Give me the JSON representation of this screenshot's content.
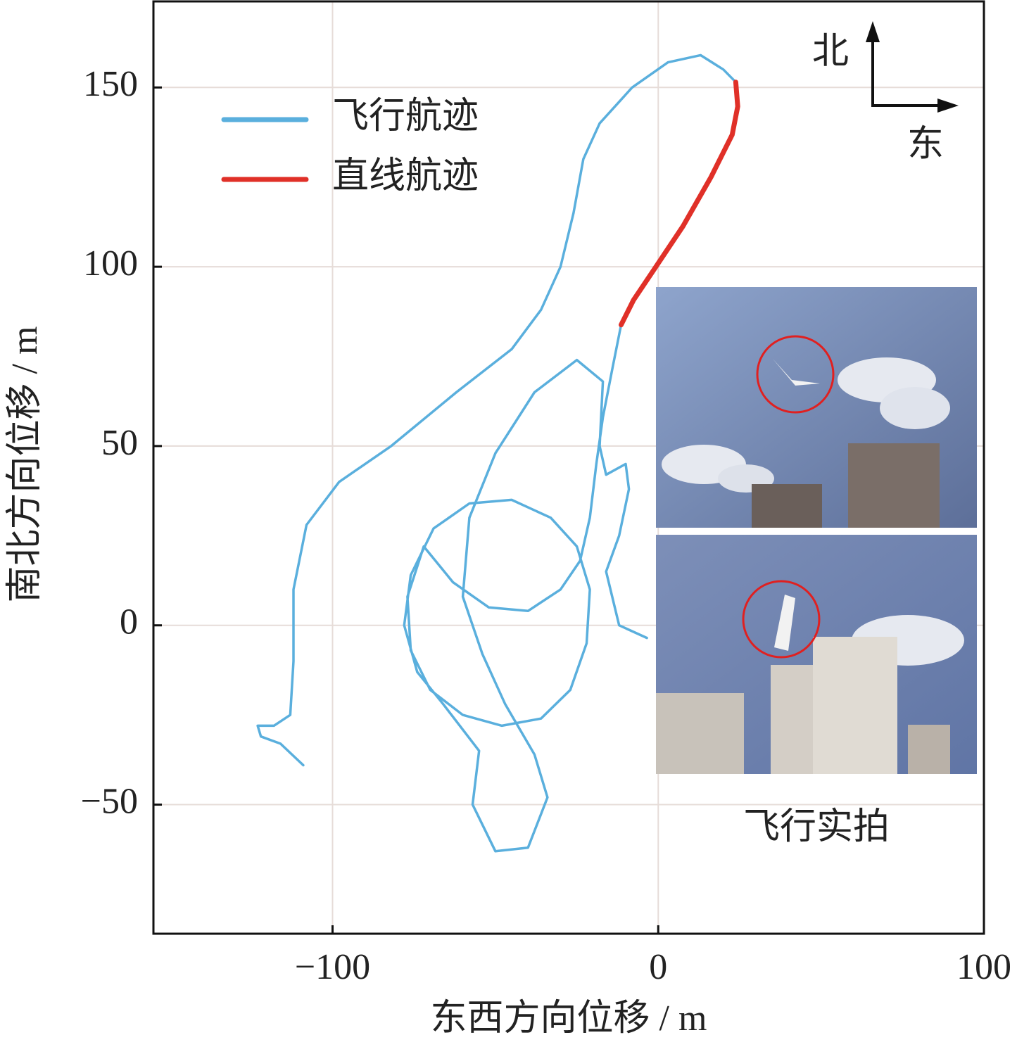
{
  "chart_data": {
    "type": "line",
    "xlabel": "东西方向位移 / m",
    "ylabel": "南北方向位移 / m",
    "xlim": [
      -155,
      100
    ],
    "ylim": [
      -86,
      174
    ],
    "xticks": [
      {
        "value": -100,
        "label": "−100"
      },
      0,
      100
    ],
    "yticks": [
      {
        "value": -50,
        "label": "−50"
      },
      0,
      50,
      100,
      150
    ],
    "grid": true,
    "legend": "upper left",
    "annotations": [
      "北",
      "东",
      "飞行实拍"
    ],
    "series": [
      {
        "name": "飞行航迹",
        "color": "#5aafdd",
        "x": [
          -109,
          -116,
          -122,
          -123,
          -118,
          -113,
          -112,
          -112,
          -108,
          -98,
          -82,
          -62,
          -45,
          -36,
          -30,
          -26,
          -23,
          -18,
          -8,
          3,
          13,
          20,
          23.8,
          null,
          -11.4,
          -14,
          -17,
          -19,
          -21,
          -24,
          -30,
          -40,
          -52,
          -63,
          -72,
          -77,
          -76,
          -70,
          -60,
          -48,
          -36,
          -27,
          -22,
          -21,
          -25,
          -33,
          -45,
          -58,
          -69,
          -76,
          -78,
          -74,
          -66,
          -55,
          -57,
          -50,
          -40,
          -34,
          -38,
          -47,
          -54,
          -60,
          -58,
          -50,
          -38,
          -25,
          -17,
          -18,
          -16,
          -10,
          -9,
          -12,
          -16,
          -12,
          -3.5
        ],
        "y": [
          -39,
          -33,
          -31,
          -28,
          -28,
          -25,
          -10,
          10,
          28,
          40,
          50,
          65,
          77,
          88,
          100,
          115,
          130,
          140,
          150,
          157,
          159,
          155,
          151.5,
          null,
          83.8,
          72,
          58,
          45,
          30,
          18,
          10,
          4,
          5,
          12,
          22,
          8,
          -7,
          -18,
          -25,
          -28,
          -26,
          -18,
          -5,
          10,
          22,
          30,
          35,
          34,
          27,
          14,
          0,
          -13,
          -22,
          -35,
          -50,
          -63,
          -62,
          -48,
          -36,
          -22,
          -8,
          8,
          30,
          48,
          65,
          74,
          68,
          50,
          42,
          45,
          38,
          25,
          15,
          0,
          -3.5
        ]
      },
      {
        "name": "直线航迹",
        "color": "#e03028",
        "x": [
          -11.4,
          -7.6,
          -1.1,
          7.6,
          16.2,
          22.7,
          24.4,
          23.8
        ],
        "y": [
          83.8,
          90.7,
          99.5,
          111.3,
          125.0,
          136.8,
          144.7,
          151.5
        ]
      }
    ]
  }
}
